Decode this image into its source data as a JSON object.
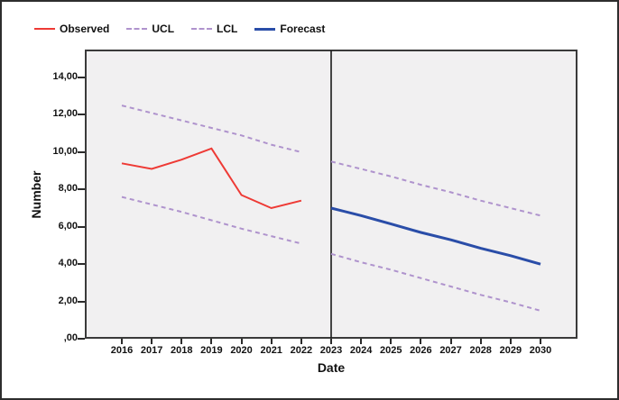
{
  "window": {
    "background": "#ffffff",
    "border_color": "#2d2d2d"
  },
  "legend": {
    "items": [
      {
        "label": "Observed",
        "color": "#ee3a35",
        "style": "solid",
        "weight": 2
      },
      {
        "label": "UCL",
        "color": "#af93cd",
        "style": "dashed",
        "weight": 2
      },
      {
        "label": "LCL",
        "color": "#af93cd",
        "style": "dashed",
        "weight": 2
      },
      {
        "label": "Forecast",
        "color": "#2a4da8",
        "style": "solid",
        "weight": 3
      }
    ]
  },
  "chart_data": {
    "type": "line",
    "title": "",
    "xlabel": "Date",
    "ylabel": "Number",
    "x_ticks": [
      2016,
      2017,
      2018,
      2019,
      2020,
      2021,
      2022,
      2023,
      2024,
      2025,
      2026,
      2027,
      2028,
      2029,
      2030
    ],
    "y_ticks": [
      {
        "value": 0,
        "label": ",00"
      },
      {
        "value": 2,
        "label": "2,00"
      },
      {
        "value": 4,
        "label": "4,00"
      },
      {
        "value": 6,
        "label": "6,00"
      },
      {
        "value": 8,
        "label": "8,00"
      },
      {
        "value": 10,
        "label": "10,00"
      },
      {
        "value": 12,
        "label": "12,00"
      },
      {
        "value": 14,
        "label": "14,00"
      }
    ],
    "xlim": [
      2016,
      2030
    ],
    "ylim": [
      0,
      15.5
    ],
    "grid": false,
    "legend_position": "top-left",
    "separator_year": 2023,
    "plot_background": "#f1f0f1",
    "frame_color": "#3a3a3a",
    "separator_color": "#1a1a1a",
    "series": [
      {
        "name": "observed",
        "legend": "Observed",
        "color": "#ee3a35",
        "dash": null,
        "width": 2,
        "x": [
          2016,
          2017,
          2018,
          2019,
          2020,
          2021,
          2022
        ],
        "values": [
          9.4,
          9.1,
          9.6,
          10.2,
          7.7,
          7.0,
          7.4
        ]
      },
      {
        "name": "ucl-observed",
        "legend": "UCL",
        "color": "#af93cd",
        "dash": "5 4",
        "width": 2,
        "x": [
          2016,
          2017,
          2018,
          2019,
          2020,
          2021,
          2022
        ],
        "values": [
          12.5,
          12.1,
          11.7,
          11.3,
          10.9,
          10.4,
          10.0
        ]
      },
      {
        "name": "lcl-observed",
        "legend": "LCL",
        "color": "#af93cd",
        "dash": "5 4",
        "width": 2,
        "x": [
          2016,
          2017,
          2018,
          2019,
          2020,
          2021,
          2022
        ],
        "values": [
          7.6,
          7.2,
          6.8,
          6.35,
          5.9,
          5.5,
          5.1
        ]
      },
      {
        "name": "ucl-forecast",
        "legend": "UCL",
        "color": "#af93cd",
        "dash": "5 4",
        "width": 2,
        "x": [
          2023,
          2024,
          2025,
          2026,
          2027,
          2028,
          2029,
          2030
        ],
        "values": [
          9.5,
          9.1,
          8.7,
          8.25,
          7.85,
          7.4,
          7.0,
          6.6
        ]
      },
      {
        "name": "lcl-forecast",
        "legend": "LCL",
        "color": "#af93cd",
        "dash": "5 4",
        "width": 2,
        "x": [
          2023,
          2024,
          2025,
          2026,
          2027,
          2028,
          2029,
          2030
        ],
        "values": [
          4.55,
          4.1,
          3.7,
          3.25,
          2.8,
          2.35,
          1.95,
          1.5
        ]
      },
      {
        "name": "forecast",
        "legend": "Forecast",
        "color": "#2a4da8",
        "dash": null,
        "width": 3,
        "x": [
          2023,
          2024,
          2025,
          2026,
          2027,
          2028,
          2029,
          2030
        ],
        "values": [
          7.0,
          6.6,
          6.15,
          5.7,
          5.3,
          4.85,
          4.45,
          4.0
        ]
      }
    ]
  }
}
